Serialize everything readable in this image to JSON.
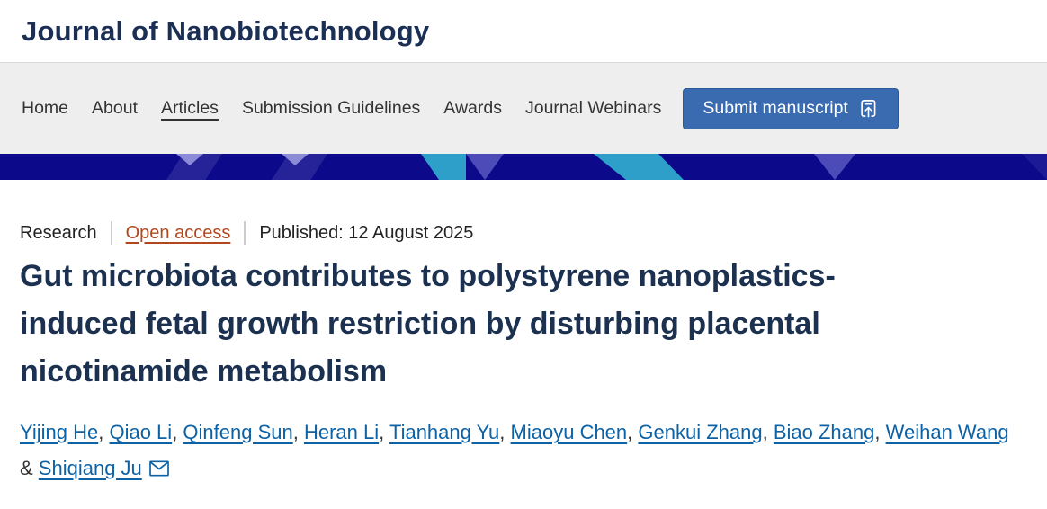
{
  "header": {
    "journal_title": "Journal of Nanobiotechnology"
  },
  "nav": {
    "items": [
      {
        "label": "Home",
        "current": false
      },
      {
        "label": "About",
        "current": false
      },
      {
        "label": "Articles",
        "current": true
      },
      {
        "label": "Submission Guidelines",
        "current": false
      },
      {
        "label": "Awards",
        "current": false
      },
      {
        "label": "Journal Webinars",
        "current": false
      }
    ],
    "submit_button": {
      "label": "Submit manuscript",
      "icon": "document-arrow-up-icon"
    }
  },
  "banner": {
    "colors": {
      "navy": "#0c0a8a",
      "navy_alt": "#262399",
      "lavender": "#8b8bd8",
      "teal": "#2e9fc9",
      "purple": "#4d4bb8"
    }
  },
  "article": {
    "type": "Research",
    "access_label": "Open access",
    "published": "Published: 12 August 2025",
    "title": "Gut microbiota contributes to polystyrene nanoplastics-induced fetal growth restriction by disturbing placental nicotinamide metabolism",
    "authors": [
      "Yijing He",
      "Qiao Li",
      "Qinfeng Sun",
      "Heran Li",
      "Tianhang Yu",
      "Miaoyu Chen",
      "Genkui Zhang",
      "Biao Zhang",
      "Weihan Wang",
      "Shiqiang Ju"
    ],
    "corresponding_author": "Shiqiang Ju",
    "separators": {
      "comma": ", ",
      "ampersand": " & "
    },
    "email_icon": "envelope-icon"
  },
  "colors": {
    "journal_title": "#1b2f55",
    "article_title": "#1c3150",
    "author_link": "#0d62a5",
    "open_access": "#b2471d",
    "nav_text": "#333333",
    "nav_background": "#eeeeee",
    "button_background": "#3a6bb0"
  }
}
